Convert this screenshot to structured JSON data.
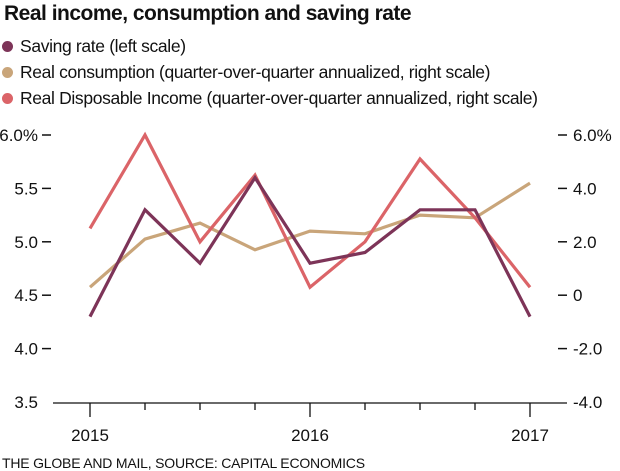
{
  "chart_data": {
    "type": "line",
    "title": "Real income, consumption and saving rate",
    "x": [
      "2015 Q1",
      "2015 Q2",
      "2015 Q3",
      "2015 Q4",
      "2016 Q1",
      "2016 Q2",
      "2016 Q3",
      "2016 Q4",
      "2017 Q1"
    ],
    "x_tick_labels": [
      {
        "index": 0,
        "label": "2015"
      },
      {
        "index": 4,
        "label": "2016"
      },
      {
        "index": 8,
        "label": "2017"
      }
    ],
    "left_axis": {
      "ylim": [
        3.5,
        6.0
      ],
      "ticks": [
        6.0,
        5.5,
        5.0,
        4.5,
        4.0,
        3.5
      ],
      "tick_labels": [
        "6.0%",
        "5.5",
        "5.0",
        "4.5",
        "4.0",
        "3.5"
      ]
    },
    "right_axis": {
      "ylim": [
        -4.0,
        6.0
      ],
      "ticks": [
        6.0,
        4.0,
        2.0,
        0,
        -2.0,
        -4.0
      ],
      "tick_labels": [
        "6.0%",
        "4.0",
        "2.0",
        "0",
        "-2.0",
        "-4.0"
      ]
    },
    "series": [
      {
        "name": "Saving rate (left scale)",
        "axis": "left",
        "color": "#7d3458",
        "values": [
          4.3,
          5.3,
          4.8,
          5.6,
          4.8,
          4.9,
          5.3,
          5.3,
          4.3
        ]
      },
      {
        "name": "Real consumption (quarter-over-quarter annualized, right scale)",
        "axis": "right",
        "color": "#c9a57a",
        "values": [
          0.3,
          2.1,
          2.7,
          1.7,
          2.4,
          2.3,
          3.0,
          2.9,
          4.2
        ]
      },
      {
        "name": "Real Disposable Income (quarter-over-quarter annualized, right scale)",
        "axis": "right",
        "color": "#db6468",
        "values": [
          2.5,
          6.0,
          2.0,
          4.5,
          0.3,
          2.0,
          5.1,
          2.9,
          0.3
        ]
      }
    ],
    "grid": false,
    "legend_position": "top-left",
    "source": "THE GLOBE AND MAIL, SOURCE: CAPITAL ECONOMICS"
  }
}
